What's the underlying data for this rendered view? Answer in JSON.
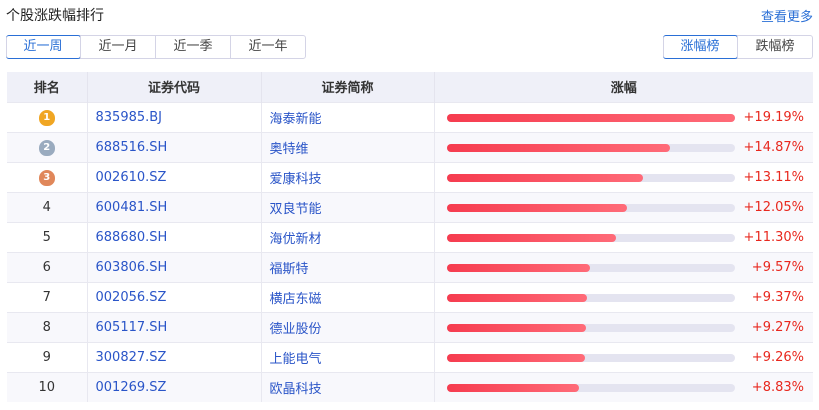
{
  "header": {
    "title": "个股涨跌幅排行",
    "more_label": "查看更多"
  },
  "periods": [
    "近一周",
    "近一月",
    "近一季",
    "近一年"
  ],
  "selected_period": "近一周",
  "directions": [
    "涨幅榜",
    "跌幅榜"
  ],
  "selected_direction": "涨幅榜",
  "columns": [
    "排名",
    "证券代码",
    "证券简称",
    "涨幅"
  ],
  "colors": {
    "accent": "#2a6fd6",
    "rise": "#e8281e",
    "bar": "#f63c4f",
    "gold": "#f0a623",
    "silver": "#9aabbf",
    "bronze": "#e0875a"
  },
  "rows": [
    {
      "rank": "1",
      "code": "835985.BJ",
      "name": "海泰新能",
      "change": "+19.19%",
      "value": 19.19
    },
    {
      "rank": "2",
      "code": "688516.SH",
      "name": "奥特维",
      "change": "+14.87%",
      "value": 14.87
    },
    {
      "rank": "3",
      "code": "002610.SZ",
      "name": "爱康科技",
      "change": "+13.11%",
      "value": 13.11
    },
    {
      "rank": "4",
      "code": "600481.SH",
      "name": "双良节能",
      "change": "+12.05%",
      "value": 12.05
    },
    {
      "rank": "5",
      "code": "688680.SH",
      "name": "海优新材",
      "change": "+11.30%",
      "value": 11.3
    },
    {
      "rank": "6",
      "code": "603806.SH",
      "name": "福斯特",
      "change": "+9.57%",
      "value": 9.57
    },
    {
      "rank": "7",
      "code": "002056.SZ",
      "name": "横店东磁",
      "change": "+9.37%",
      "value": 9.37
    },
    {
      "rank": "8",
      "code": "605117.SH",
      "name": "德业股份",
      "change": "+9.27%",
      "value": 9.27
    },
    {
      "rank": "9",
      "code": "300827.SZ",
      "name": "上能电气",
      "change": "+9.26%",
      "value": 9.26
    },
    {
      "rank": "10",
      "code": "001269.SZ",
      "name": "欧晶科技",
      "change": "+8.83%",
      "value": 8.83
    }
  ]
}
